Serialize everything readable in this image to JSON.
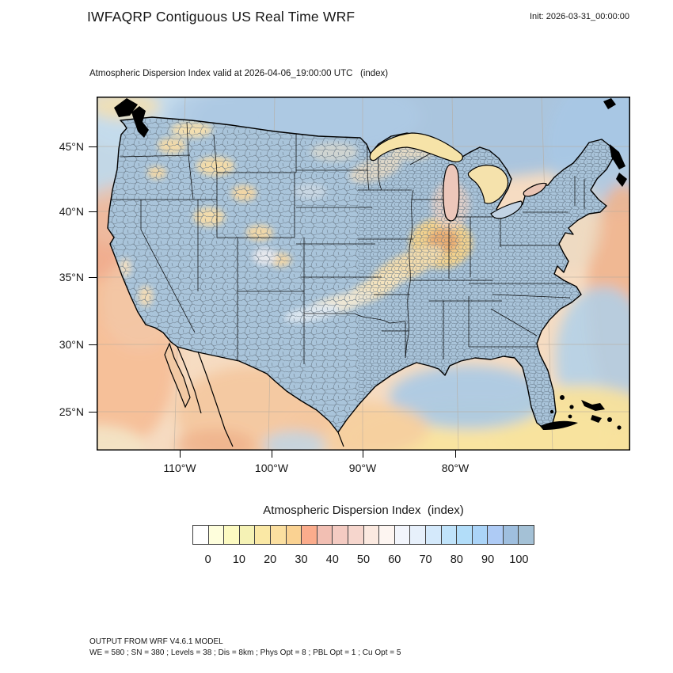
{
  "header": {
    "title": "IWFAQRP Contiguous US Real Time WRF",
    "init_label": "Init: 2026-03-31_00:00:00"
  },
  "map": {
    "subtitle": "Atmospheric Dispersion Index valid at 2026-04-06_19:00:00 UTC   (index)",
    "lat_tick_labels": [
      "45°N",
      "40°N",
      "35°N",
      "30°N",
      "25°N"
    ],
    "lon_tick_labels": [
      "110°W",
      "100°W",
      "90°W",
      "80°W"
    ],
    "land_fill_color": "#A9C4DA",
    "coastline_color": "#000000",
    "county_line_color": "#6B7B89"
  },
  "colorbar": {
    "title": "Atmospheric Dispersion Index  (index)",
    "tick_labels": [
      "0",
      "10",
      "20",
      "30",
      "40",
      "50",
      "60",
      "70",
      "80",
      "90",
      "100"
    ],
    "colors": [
      "#FFFFFF",
      "#FEFEDC",
      "#FCFAC1",
      "#F5F2B5",
      "#FAE8A5",
      "#FBDFA0",
      "#FAD292",
      "#FBAC8C",
      "#F2BFB3",
      "#F4CBC2",
      "#F6D6CD",
      "#FBE9E0",
      "#FDF5F1",
      "#F2F5FC",
      "#E7F0FB",
      "#D4E9FB",
      "#C0E3FA",
      "#B2DDF9",
      "#ABD4F8",
      "#AECBF5",
      "#9FBFDF",
      "#A4C1D6"
    ]
  },
  "footer": {
    "line1": "OUTPUT FROM WRF V4.6.1 MODEL",
    "line2": "WE = 580 ; SN = 380 ; Levels = 38 ; Dis = 8km ; Phys Opt = 8 ; PBL Opt = 1 ; Cu Opt = 5"
  }
}
